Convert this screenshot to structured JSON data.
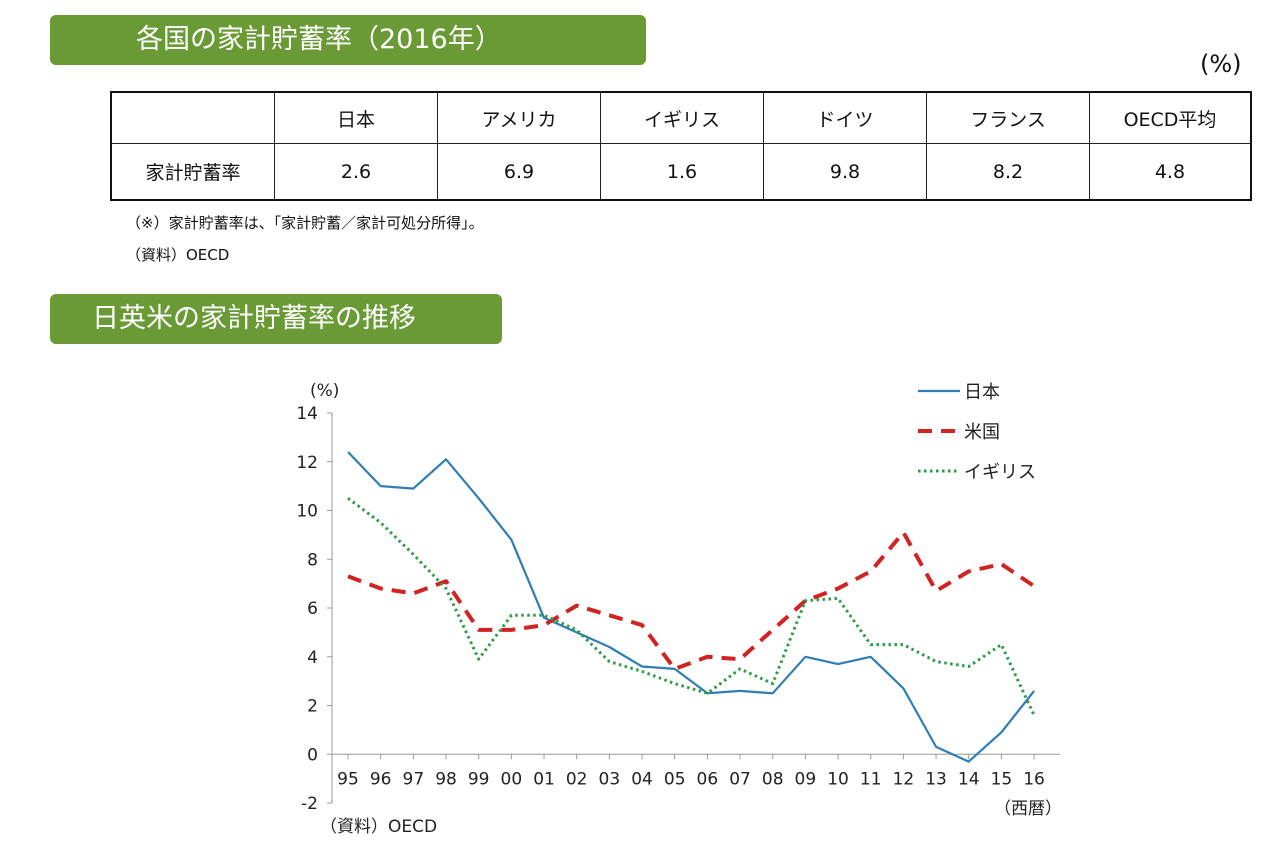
{
  "section1": {
    "title": "各国の家計貯蓄率（2016年）",
    "unit": "(%)"
  },
  "table": {
    "row_header": "家計貯蓄率",
    "columns": [
      "日本",
      "アメリカ",
      "イギリス",
      "ドイツ",
      "フランス",
      "OECD平均"
    ],
    "values": [
      "2.6",
      "6.9",
      "1.6",
      "9.8",
      "8.2",
      "4.8"
    ]
  },
  "notes": {
    "definition": "（※）家計貯蓄率は、「家計貯蓄／家計可処分所得」。",
    "source": "（資料）OECD"
  },
  "section2": {
    "title": "日英米の家計貯蓄率の推移"
  },
  "chart_data": {
    "type": "line",
    "y_unit_label": "(%)",
    "x_unit_label": "（西暦）",
    "source": "（資料）OECD",
    "categories": [
      "95",
      "96",
      "97",
      "98",
      "99",
      "00",
      "01",
      "02",
      "03",
      "04",
      "05",
      "06",
      "07",
      "08",
      "09",
      "10",
      "11",
      "12",
      "13",
      "14",
      "15",
      "16"
    ],
    "ylim": [
      -2,
      14
    ],
    "yticks": [
      14,
      12,
      10,
      8,
      6,
      4,
      2,
      0,
      -2
    ],
    "grid": false,
    "legend_position": "top-right",
    "series": [
      {
        "name": "日本",
        "color": "#2e7db5",
        "style": "solid",
        "values": [
          12.4,
          11.0,
          10.9,
          12.1,
          10.5,
          8.8,
          5.6,
          5.0,
          4.4,
          3.6,
          3.5,
          2.5,
          2.6,
          2.5,
          4.0,
          3.7,
          4.0,
          2.7,
          0.3,
          -0.3,
          0.9,
          2.6
        ]
      },
      {
        "name": "米国",
        "color": "#d22323",
        "style": "dashed",
        "values": [
          7.3,
          6.8,
          6.6,
          7.1,
          5.1,
          5.1,
          5.3,
          6.1,
          5.7,
          5.3,
          3.5,
          4.0,
          3.9,
          5.1,
          6.3,
          6.8,
          7.5,
          9.1,
          6.7,
          7.5,
          7.8,
          6.9
        ]
      },
      {
        "name": "イギリス",
        "color": "#2e9a48",
        "style": "dotted",
        "values": [
          10.5,
          9.5,
          8.2,
          6.8,
          3.9,
          5.7,
          5.7,
          5.1,
          3.8,
          3.4,
          2.9,
          2.5,
          3.5,
          2.9,
          6.3,
          6.4,
          4.5,
          4.5,
          3.8,
          3.6,
          4.5,
          1.6
        ]
      }
    ]
  }
}
